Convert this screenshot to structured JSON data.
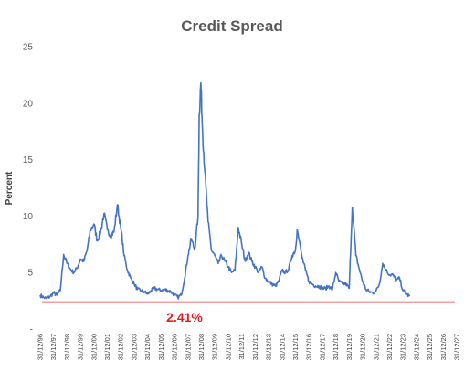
{
  "chart_data": {
    "type": "line",
    "title": "Credit Spread",
    "ylabel": "Percent",
    "xlabel": "",
    "ylim": [
      0,
      25
    ],
    "ytick_labels": [
      "-",
      "5",
      "10",
      "15",
      "20",
      "25"
    ],
    "yticks": [
      0,
      5,
      10,
      15,
      20,
      25
    ],
    "x_tick_labels": [
      "31/12/96",
      "31/12/97",
      "31/12/98",
      "31/12/99",
      "31/12/00",
      "31/12/01",
      "31/12/02",
      "31/12/03",
      "31/12/04",
      "31/12/05",
      "31/12/06",
      "31/12/07",
      "31/12/08",
      "31/12/09",
      "31/12/10",
      "31/12/11",
      "31/12/12",
      "31/12/13",
      "31/12/14",
      "31/12/15",
      "31/12/16",
      "31/12/17",
      "31/12/18",
      "31/12/19",
      "31/12/20",
      "31/12/21",
      "31/12/22",
      "31/12/23",
      "31/12/24",
      "31/12/25",
      "31/12/26",
      "31/12/27"
    ],
    "grid": false,
    "line_color": "#4472c4",
    "reference_line": {
      "value": 2.41,
      "color": "#f08080"
    },
    "annotation": {
      "text": "2.41%",
      "color": "#e02020"
    },
    "series": [
      {
        "x": [
          "1996-12-31",
          "1997-03-31",
          "1997-06-30",
          "1997-09-30",
          "1997-12-31",
          "1998-03-31",
          "1998-06-30",
          "1998-09-30",
          "1998-12-31",
          "1999-03-31",
          "1999-06-30",
          "1999-09-30",
          "1999-12-31",
          "2000-03-31",
          "2000-06-30",
          "2000-09-30",
          "2000-12-31",
          "2001-03-31",
          "2001-06-30",
          "2001-09-30",
          "2001-12-31",
          "2002-03-31",
          "2002-06-30",
          "2002-09-30",
          "2002-12-31",
          "2003-03-31",
          "2003-06-30",
          "2003-09-30",
          "2003-12-31",
          "2004-03-31",
          "2004-06-30",
          "2004-09-30",
          "2004-12-31",
          "2005-03-31",
          "2005-06-30",
          "2005-09-30",
          "2005-12-31",
          "2006-03-31",
          "2006-06-30",
          "2006-09-30",
          "2006-12-31",
          "2007-03-31",
          "2007-06-30",
          "2007-09-30",
          "2007-12-31",
          "2008-03-31",
          "2008-06-30",
          "2008-09-30",
          "2008-10-31",
          "2008-12-15",
          "2009-01-31",
          "2009-03-31",
          "2009-06-30",
          "2009-09-30",
          "2009-12-31",
          "2010-03-31",
          "2010-06-30",
          "2010-09-30",
          "2010-12-31",
          "2011-03-31",
          "2011-06-30",
          "2011-09-30",
          "2011-12-31",
          "2012-03-31",
          "2012-06-30",
          "2012-09-30",
          "2012-12-31",
          "2013-03-31",
          "2013-06-30",
          "2013-09-30",
          "2013-12-31",
          "2014-03-31",
          "2014-06-30",
          "2014-09-30",
          "2014-12-31",
          "2015-03-31",
          "2015-06-30",
          "2015-09-30",
          "2015-12-31",
          "2016-02-15",
          "2016-06-30",
          "2016-09-30",
          "2016-12-31",
          "2017-03-31",
          "2017-06-30",
          "2017-09-30",
          "2017-12-31",
          "2018-03-31",
          "2018-06-30",
          "2018-09-30",
          "2018-12-31",
          "2019-03-31",
          "2019-06-30",
          "2019-09-30",
          "2019-12-31",
          "2020-03-23",
          "2020-06-30",
          "2020-09-30",
          "2020-12-31",
          "2021-03-31",
          "2021-06-30",
          "2021-09-30",
          "2021-12-31",
          "2022-03-31",
          "2022-06-30",
          "2022-09-30",
          "2022-12-31",
          "2023-03-31",
          "2023-06-30",
          "2023-09-30",
          "2023-12-31",
          "2024-03-31",
          "2024-06-30"
        ],
        "y": [
          3.0,
          2.8,
          2.7,
          2.9,
          3.2,
          3.0,
          3.4,
          6.6,
          5.8,
          5.3,
          5.0,
          5.4,
          6.2,
          6.0,
          7.0,
          8.8,
          9.3,
          7.8,
          8.6,
          10.2,
          8.8,
          8.3,
          8.6,
          11.0,
          9.0,
          6.5,
          5.2,
          4.5,
          4.0,
          3.5,
          3.4,
          3.3,
          3.1,
          3.4,
          3.6,
          3.5,
          3.4,
          3.5,
          3.4,
          3.3,
          3.0,
          2.8,
          3.0,
          4.5,
          6.5,
          8.0,
          7.0,
          10.0,
          19.0,
          21.8,
          17.5,
          14.0,
          9.5,
          7.0,
          6.5,
          5.8,
          6.5,
          6.0,
          5.5,
          5.0,
          5.2,
          9.0,
          7.5,
          6.0,
          6.8,
          6.0,
          5.5,
          5.0,
          5.5,
          4.5,
          4.2,
          4.0,
          3.8,
          4.2,
          5.2,
          5.0,
          5.3,
          6.5,
          7.0,
          8.8,
          6.3,
          5.2,
          4.2,
          4.0,
          3.8,
          3.8,
          3.6,
          3.6,
          3.8,
          3.5,
          5.0,
          4.2,
          4.0,
          4.0,
          3.6,
          10.8,
          6.5,
          5.3,
          4.2,
          3.5,
          3.3,
          3.2,
          3.4,
          4.0,
          5.8,
          5.2,
          4.8,
          4.8,
          4.3,
          4.5,
          3.4,
          3.1,
          2.9
        ]
      }
    ]
  }
}
